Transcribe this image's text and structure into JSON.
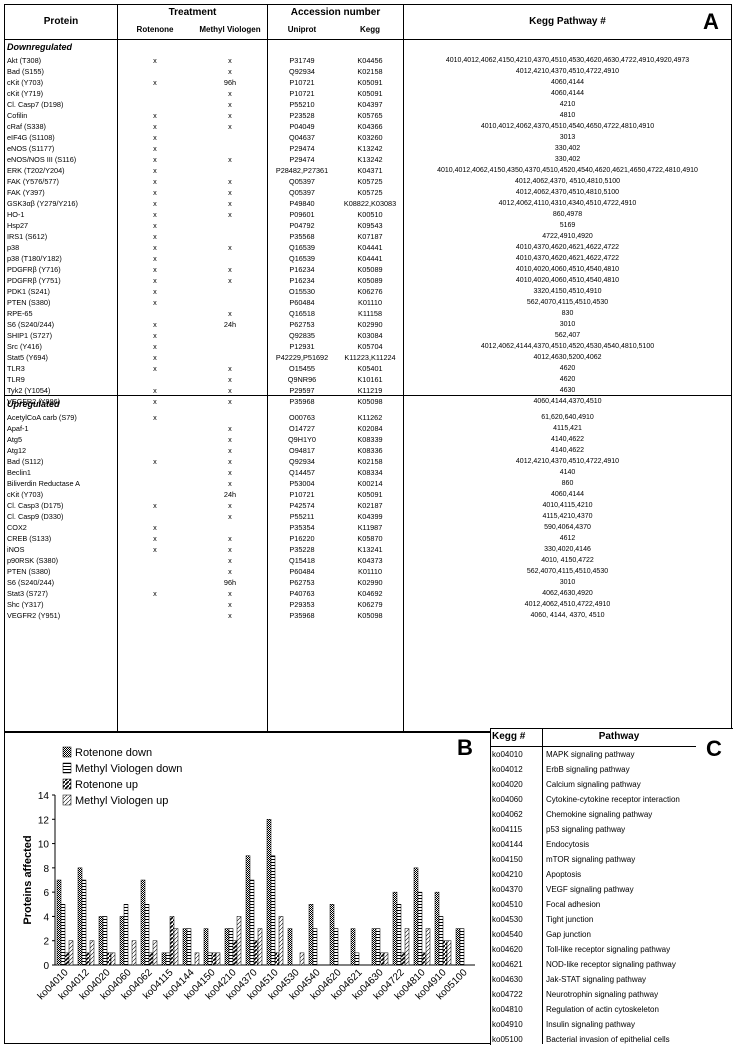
{
  "headers": {
    "protein": "Protein",
    "treatment": "Treatment",
    "rotenone": "Rotenone",
    "mv": "Methyl Viologen",
    "accession": "Accession number",
    "uniprot": "Uniprot",
    "kegg": "Kegg",
    "pathway": "Kegg Pathway #"
  },
  "panel_labels": {
    "a": "A",
    "b": "B",
    "c": "C"
  },
  "sections": {
    "down": "Downregulated",
    "up": "Upregulated"
  },
  "down_rows": [
    [
      "Akt (T308)",
      "x",
      "x",
      "P31749",
      "K04456",
      "4010,4012,4062,4150,4210,4370,4510,4530,4620,4630,4722,4910,4920,4973"
    ],
    [
      "Bad (S155)",
      "",
      "x",
      "Q92934",
      "K02158",
      "4012,4210,4370,4510,4722,4910"
    ],
    [
      "cKit (Y703)",
      "x",
      "96h",
      "P10721",
      "K05091",
      "4060,4144"
    ],
    [
      "cKit (Y719)",
      "",
      "x",
      "P10721",
      "K05091",
      "4060,4144"
    ],
    [
      "Cl. Casp7 (D198)",
      "",
      "x",
      "P55210",
      "K04397",
      "4210"
    ],
    [
      "Cofilin",
      "x",
      "x",
      "P23528",
      "K05765",
      "4810"
    ],
    [
      "cRaf (S338)",
      "x",
      "x",
      "P04049",
      "K04366",
      "4010,4012,4062,4370,4510,4540,4650,4722,4810,4910"
    ],
    [
      "eIF4G (S1108)",
      "x",
      "",
      "Q04637",
      "K03260",
      "3013"
    ],
    [
      "eNOS (S1177)",
      "x",
      "",
      "P29474",
      "K13242",
      "330,402"
    ],
    [
      "eNOS/NOS III (S116)",
      "x",
      "x",
      "P29474",
      "K13242",
      "330,402"
    ],
    [
      "ERK (T202/Y204)",
      "x",
      "",
      "P28482,P27361",
      "K04371",
      "4010,4012,4062,4150,4350,4370,4510,4520,4540,4620,4621,4650,4722,4810,4910"
    ],
    [
      "FAK (Y576/577)",
      "x",
      "x",
      "Q05397",
      "K05725",
      "4012,4062,4370, 4510,4810,5100"
    ],
    [
      "FAK (Y397)",
      "x",
      "x",
      "Q05397",
      "K05725",
      "4012,4062,4370,4510,4810,5100"
    ],
    [
      "GSK3αβ (Y279/Y216)",
      "x",
      "x",
      "P49840",
      "K08822,K03083",
      "4012,4062,4110,4310,4340,4510,4722,4910"
    ],
    [
      "HO-1",
      "x",
      "x",
      "P09601",
      "K00510",
      "860,4978"
    ],
    [
      "Hsp27",
      "x",
      "",
      "P04792",
      "K09543",
      "5169"
    ],
    [
      "IRS1 (S612)",
      "x",
      "",
      "P35568",
      "K07187",
      "4722,4910,4920"
    ],
    [
      "p38",
      "x",
      "x",
      "Q16539",
      "K04441",
      "4010,4370,4620,4621,4622,4722"
    ],
    [
      "p38 (T180/Y182)",
      "x",
      "",
      "Q16539",
      "K04441",
      "4010,4370,4620,4621,4622,4722"
    ],
    [
      "PDGFRβ (Y716)",
      "x",
      "x",
      "P16234",
      "K05089",
      "4010,4020,4060,4510,4540,4810"
    ],
    [
      "PDGFRβ (Y751)",
      "x",
      "x",
      "P16234",
      "K05089",
      "4010,4020,4060,4510,4540,4810"
    ],
    [
      "PDK1 (S241)",
      "x",
      "",
      "O15530",
      "K06276",
      "3320,4150,4510,4910"
    ],
    [
      "PTEN (S380)",
      "x",
      "",
      "P60484",
      "K01110",
      "562,4070,4115,4510,4530"
    ],
    [
      "RPE-65",
      "",
      "x",
      "Q16518",
      "K11158",
      "830"
    ],
    [
      "S6 (S240/244)",
      "x",
      "24h",
      "P62753",
      "K02990",
      "3010"
    ],
    [
      "SHIP1 (S727)",
      "x",
      "",
      "Q92835",
      "K03084",
      "562,407"
    ],
    [
      "Src (Y416)",
      "x",
      "",
      "P12931",
      "K05704",
      "4012,4062,4144,4370,4510,4520,4530,4540,4810,5100"
    ],
    [
      "Stat5 (Y694)",
      "x",
      "",
      "P42229,P51692",
      "K11223,K11224",
      "4012,4630,5200,4062"
    ],
    [
      "TLR3",
      "x",
      "x",
      "O15455",
      "K05401",
      "4620"
    ],
    [
      "TLR9",
      "",
      "x",
      "Q9NR96",
      "K10161",
      "4620"
    ],
    [
      "Tyk2 (Y1054)",
      "x",
      "x",
      "P29597",
      "K11219",
      "4630"
    ],
    [
      "VEGFR2 (Y996)",
      "x",
      "x",
      "P35968",
      "K05098",
      "4060,4144,4370,4510"
    ]
  ],
  "up_rows": [
    [
      "AcetylCoA carb (S79)",
      "x",
      "",
      "O00763",
      "K11262",
      "61,620,640,4910"
    ],
    [
      "Apaf-1",
      "",
      "x",
      "O14727",
      "K02084",
      "4115,421"
    ],
    [
      "Atg5",
      "",
      "x",
      "Q9H1Y0",
      "K08339",
      "4140,4622"
    ],
    [
      "Atg12",
      "",
      "x",
      "O94817",
      "K08336",
      "4140,4622"
    ],
    [
      "Bad (S112)",
      "x",
      "x",
      "Q92934",
      "K02158",
      "4012,4210,4370,4510,4722,4910"
    ],
    [
      "Beclin1",
      "",
      "x",
      "Q14457",
      "K08334",
      "4140"
    ],
    [
      "Biliverdin Reductase A",
      "",
      "x",
      "P53004",
      "K00214",
      "860"
    ],
    [
      "cKit (Y703)",
      "",
      "24h",
      "P10721",
      "K05091",
      "4060,4144"
    ],
    [
      "Cl. Casp3 (D175)",
      "x",
      "x",
      "P42574",
      "K02187",
      "4010,4115,4210"
    ],
    [
      "Cl. Casp9 (D330)",
      "",
      "x",
      "P55211",
      "K04399",
      "4115,4210,4370"
    ],
    [
      "COX2",
      "x",
      "",
      "P35354",
      "K11987",
      "590,4064,4370"
    ],
    [
      "CREB (S133)",
      "x",
      "x",
      "P16220",
      "K05870",
      "4612"
    ],
    [
      "iNOS",
      "x",
      "x",
      "P35228",
      "K13241",
      "330,4020,4146"
    ],
    [
      "p90RSK (S380)",
      "",
      "x",
      "Q15418",
      "K04373",
      "4010, 4150,4722"
    ],
    [
      "PTEN (S380)",
      "",
      "x",
      "P60484",
      "K01110",
      "562,4070,4115,4510,4530"
    ],
    [
      "S6 (S240/244)",
      "",
      "96h",
      "P62753",
      "K02990",
      "3010"
    ],
    [
      "Stat3 (S727)",
      "x",
      "x",
      "P40763",
      "K04692",
      "4062,4630,4920"
    ],
    [
      "Shc (Y317)",
      "",
      "x",
      "P29353",
      "K06279",
      "4012,4062,4510,4722,4910"
    ],
    [
      "VEGFR2 (Y951)",
      "",
      "x",
      "P35968",
      "K05098",
      "4060, 4144, 4370, 4510"
    ]
  ],
  "kegg_table": {
    "header_code": "Kegg #",
    "header_name": "Pathway",
    "rows": [
      [
        "ko04010",
        "MAPK signaling pathway"
      ],
      [
        "ko04012",
        "ErbB signaling pathway"
      ],
      [
        "ko04020",
        "Calcium signaling pathway"
      ],
      [
        "ko04060",
        "Cytokine-cytokine receptor interaction"
      ],
      [
        "ko04062",
        "Chemokine signaling pathway"
      ],
      [
        "ko04115",
        "p53 signaling pathway"
      ],
      [
        "ko04144",
        "Endocytosis"
      ],
      [
        "ko04150",
        "mTOR signaling pathway"
      ],
      [
        "ko04210",
        "Apoptosis"
      ],
      [
        "ko04370",
        "VEGF signaling pathway"
      ],
      [
        "ko04510",
        "Focal adhesion"
      ],
      [
        "ko04530",
        "Tight junction"
      ],
      [
        "ko04540",
        "Gap junction"
      ],
      [
        "ko04620",
        "Toll-like receptor signaling pathway"
      ],
      [
        "ko04621",
        "NOD-like receptor signaling pathway"
      ],
      [
        "ko04630",
        "Jak-STAT signaling pathway"
      ],
      [
        "ko04722",
        "Neurotrophin signaling pathway"
      ],
      [
        "ko04810",
        "Regulation of actin cytoskeleton"
      ],
      [
        "ko04910",
        "Insulin signaling pathway"
      ],
      [
        "ko05100",
        "Bacterial invasion of epithelial cells"
      ]
    ]
  },
  "chart_data": {
    "type": "bar",
    "ylabel": "Proteins affected",
    "xlabel": "",
    "ylim": [
      0,
      14
    ],
    "yticks": [
      0,
      2,
      4,
      6,
      8,
      10,
      12,
      14
    ],
    "legend_position": "top-left",
    "categories": [
      "ko04010",
      "ko04012",
      "ko04020",
      "ko04060",
      "ko04062",
      "ko04115",
      "ko04144",
      "ko04150",
      "ko04210",
      "ko04370",
      "ko04510",
      "ko04530",
      "ko04540",
      "ko04620",
      "ko04621",
      "ko04630",
      "ko04722",
      "ko04810",
      "ko04910",
      "ko05100"
    ],
    "series": [
      {
        "name": "Rotenone down",
        "pattern": "dense",
        "values": [
          7,
          8,
          4,
          4,
          7,
          1,
          3,
          3,
          3,
          9,
          12,
          3,
          5,
          5,
          3,
          3,
          6,
          8,
          6,
          3
        ]
      },
      {
        "name": "Methyl Viologen down",
        "pattern": "hatch",
        "values": [
          5,
          7,
          4,
          5,
          5,
          1,
          3,
          1,
          3,
          7,
          9,
          0,
          3,
          3,
          1,
          3,
          5,
          6,
          4,
          3
        ]
      },
      {
        "name": "Rotenone up",
        "pattern": "diag",
        "values": [
          1,
          1,
          1,
          0,
          1,
          4,
          0,
          1,
          2,
          2,
          1,
          0,
          0,
          0,
          0,
          1,
          1,
          1,
          2,
          0
        ]
      },
      {
        "name": "Methyl Viologen up",
        "pattern": "light",
        "values": [
          2,
          2,
          1,
          2,
          2,
          3,
          1,
          1,
          4,
          3,
          4,
          1,
          0,
          0,
          0,
          1,
          3,
          3,
          2,
          0
        ]
      }
    ]
  }
}
